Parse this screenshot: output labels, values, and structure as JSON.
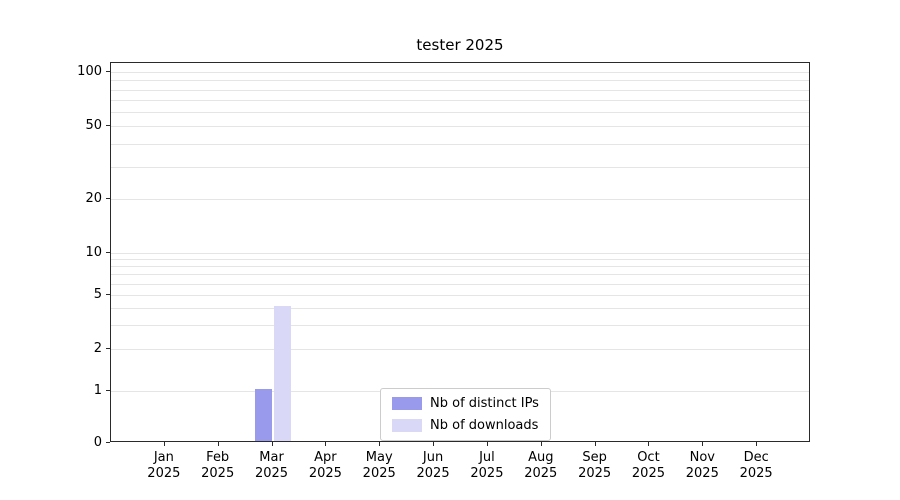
{
  "chart_data": {
    "type": "bar",
    "title": "tester 2025",
    "months": [
      "Jan",
      "Feb",
      "Mar",
      "Apr",
      "May",
      "Jun",
      "Jul",
      "Aug",
      "Sep",
      "Oct",
      "Nov",
      "Dec"
    ],
    "year": "2025",
    "series": [
      {
        "name": "Nb of distinct IPs",
        "color": "#9a9aec",
        "values": [
          0,
          0,
          1,
          0,
          0,
          0,
          0,
          0,
          0,
          0,
          0,
          0
        ]
      },
      {
        "name": "Nb of downloads",
        "color": "#d9d9f7",
        "values": [
          0,
          0,
          4,
          0,
          0,
          0,
          0,
          0,
          0,
          0,
          0,
          0
        ]
      }
    ],
    "yticks": [
      0,
      1,
      2,
      5,
      10,
      20,
      50,
      100
    ],
    "ylim": [
      0,
      100
    ],
    "scale": "symlog",
    "grid": "horizontal-minor",
    "legend_position": "lower-center",
    "grid_color": "#e5e5e5"
  }
}
